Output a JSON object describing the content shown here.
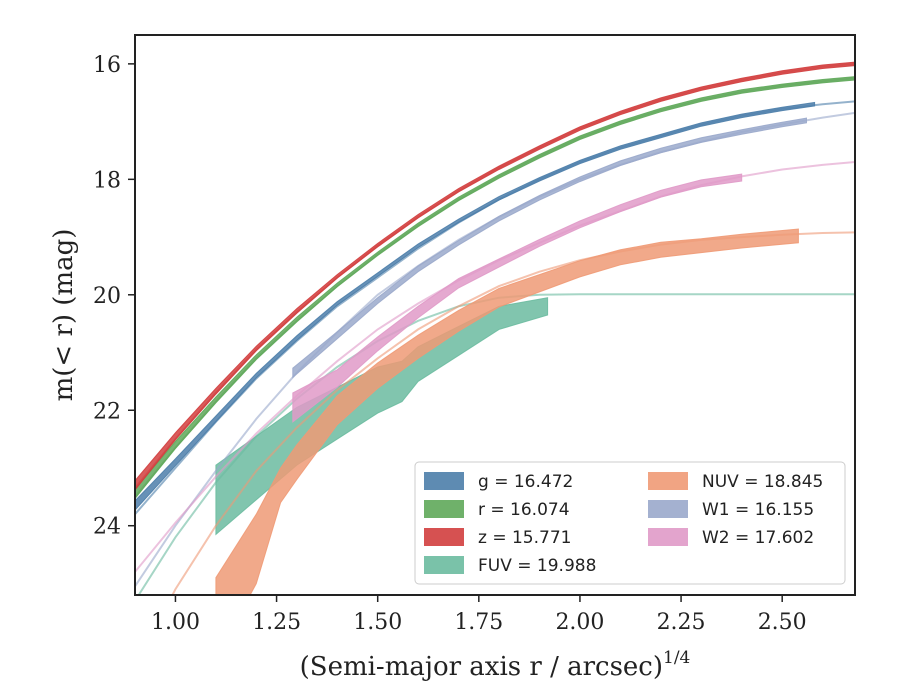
{
  "chart_data": {
    "type": "line",
    "title": "",
    "xlabel": "(Semi-major axis r / arcsec)",
    "xlabel_superscript": "1/4",
    "ylabel": "m(< r) (mag)",
    "xlim": [
      0.9,
      2.68
    ],
    "ylim": [
      25.2,
      15.5
    ],
    "y_inverted": true,
    "xticks": [
      "1.00",
      "1.25",
      "1.50",
      "1.75",
      "2.00",
      "2.25",
      "2.50"
    ],
    "yticks": [
      "16",
      "18",
      "20",
      "22",
      "24"
    ],
    "grid": false,
    "legend_position": "lower-right",
    "series": [
      {
        "name": "g = 16.472",
        "color": "#4c7eaa",
        "fit": {
          "x": [
            0.9,
            1.0,
            1.1,
            1.2,
            1.3,
            1.4,
            1.5,
            1.6,
            1.7,
            1.8,
            1.9,
            2.0,
            2.1,
            2.2,
            2.3,
            2.4,
            2.5,
            2.6,
            2.68
          ],
          "y": [
            23.8,
            23.0,
            22.2,
            21.45,
            20.8,
            20.2,
            19.7,
            19.2,
            18.75,
            18.35,
            18.0,
            17.7,
            17.45,
            17.25,
            17.05,
            16.9,
            16.78,
            16.7,
            16.65
          ]
        },
        "data": {
          "x": [
            0.9,
            1.0,
            1.1,
            1.2,
            1.3,
            1.4,
            1.5,
            1.6,
            1.7,
            1.8,
            1.9,
            2.0,
            2.1,
            2.2,
            2.3,
            2.4,
            2.5,
            2.58
          ],
          "y": [
            23.65,
            22.9,
            22.15,
            21.4,
            20.75,
            20.15,
            19.65,
            19.15,
            18.72,
            18.33,
            18.0,
            17.7,
            17.45,
            17.25,
            17.05,
            16.9,
            16.78,
            16.7
          ],
          "err": [
            0.08,
            0.06,
            0.05,
            0.04,
            0.04,
            0.03,
            0.03,
            0.03,
            0.03,
            0.03,
            0.03,
            0.03,
            0.03,
            0.03,
            0.03,
            0.03,
            0.03,
            0.03
          ]
        }
      },
      {
        "name": "r = 16.074",
        "color": "#5fa85a",
        "fit": {
          "x": [
            0.9,
            1.0,
            1.1,
            1.2,
            1.3,
            1.4,
            1.5,
            1.6,
            1.7,
            1.8,
            1.9,
            2.0,
            2.1,
            2.2,
            2.3,
            2.4,
            2.5,
            2.6,
            2.68
          ],
          "y": [
            23.5,
            22.65,
            21.85,
            21.1,
            20.45,
            19.85,
            19.3,
            18.8,
            18.35,
            17.95,
            17.6,
            17.28,
            17.02,
            16.8,
            16.62,
            16.48,
            16.38,
            16.3,
            16.25
          ]
        },
        "data": {
          "x": [
            0.9,
            1.0,
            1.1,
            1.2,
            1.3,
            1.4,
            1.5,
            1.6,
            1.7,
            1.8,
            1.9,
            2.0,
            2.1,
            2.2,
            2.3,
            2.4,
            2.5,
            2.6,
            2.68
          ],
          "y": [
            23.45,
            22.6,
            21.82,
            21.08,
            20.43,
            19.83,
            19.29,
            18.79,
            18.34,
            17.95,
            17.6,
            17.28,
            17.02,
            16.8,
            16.62,
            16.48,
            16.38,
            16.3,
            16.25
          ],
          "err": [
            0.08,
            0.06,
            0.05,
            0.04,
            0.04,
            0.03,
            0.03,
            0.03,
            0.03,
            0.03,
            0.03,
            0.03,
            0.03,
            0.03,
            0.03,
            0.03,
            0.03,
            0.03,
            0.03
          ]
        }
      },
      {
        "name": "z = 15.771",
        "color": "#d23e3e",
        "fit": {
          "x": [
            0.9,
            1.0,
            1.1,
            1.2,
            1.3,
            1.4,
            1.5,
            1.6,
            1.7,
            1.8,
            1.9,
            2.0,
            2.1,
            2.2,
            2.3,
            2.4,
            2.5,
            2.6,
            2.68
          ],
          "y": [
            23.35,
            22.5,
            21.7,
            20.95,
            20.3,
            19.7,
            19.15,
            18.65,
            18.2,
            17.8,
            17.45,
            17.12,
            16.85,
            16.62,
            16.43,
            16.28,
            16.15,
            16.05,
            16.0
          ]
        },
        "data": {
          "x": [
            0.9,
            1.0,
            1.1,
            1.2,
            1.3,
            1.4,
            1.5,
            1.6,
            1.7,
            1.8,
            1.9,
            2.0,
            2.1,
            2.2,
            2.3,
            2.4,
            2.5,
            2.6,
            2.68
          ],
          "y": [
            23.3,
            22.45,
            21.67,
            20.93,
            20.28,
            19.68,
            19.14,
            18.64,
            18.19,
            17.8,
            17.45,
            17.12,
            16.85,
            16.62,
            16.43,
            16.28,
            16.15,
            16.05,
            16.0
          ],
          "err": [
            0.08,
            0.06,
            0.05,
            0.04,
            0.04,
            0.03,
            0.03,
            0.03,
            0.03,
            0.03,
            0.03,
            0.03,
            0.03,
            0.03,
            0.03,
            0.03,
            0.03,
            0.03,
            0.03
          ]
        }
      },
      {
        "name": "FUV = 19.988",
        "color": "#6bbba0",
        "fit": {
          "x": [
            0.9,
            1.0,
            1.1,
            1.2,
            1.3,
            1.4,
            1.5,
            1.6,
            1.7,
            1.8,
            1.9,
            2.0,
            2.1,
            2.2,
            2.4,
            2.68
          ],
          "y": [
            25.3,
            24.2,
            23.25,
            22.45,
            21.8,
            21.25,
            20.8,
            20.45,
            20.2,
            20.05,
            20.0,
            19.99,
            19.99,
            19.99,
            19.99,
            19.99
          ]
        },
        "data": {
          "x": [
            1.1,
            1.2,
            1.3,
            1.4,
            1.5,
            1.56,
            1.6,
            1.7,
            1.8,
            1.92
          ],
          "y": [
            23.55,
            23.0,
            22.45,
            22.05,
            21.65,
            21.5,
            21.2,
            20.8,
            20.4,
            20.2
          ],
          "err": [
            0.6,
            0.55,
            0.5,
            0.45,
            0.4,
            0.35,
            0.3,
            0.25,
            0.2,
            0.15
          ]
        }
      },
      {
        "name": "NUV = 18.845",
        "color": "#ef9a76",
        "fit": {
          "x": [
            0.9,
            1.0,
            1.1,
            1.2,
            1.3,
            1.4,
            1.5,
            1.6,
            1.7,
            1.8,
            1.9,
            2.0,
            2.1,
            2.2,
            2.3,
            2.4,
            2.5,
            2.6,
            2.68
          ],
          "y": [
            26.5,
            25.1,
            24.0,
            23.05,
            22.3,
            21.65,
            21.1,
            20.6,
            20.2,
            19.85,
            19.6,
            19.4,
            19.25,
            19.13,
            19.05,
            19.0,
            18.96,
            18.93,
            18.92
          ]
        },
        "data": {
          "x": [
            1.1,
            1.2,
            1.26,
            1.3,
            1.4,
            1.5,
            1.6,
            1.7,
            1.8,
            1.9,
            2.0,
            2.1,
            2.2,
            2.3,
            2.4,
            2.54
          ],
          "y": [
            25.6,
            24.4,
            23.3,
            22.9,
            22.0,
            21.4,
            20.9,
            20.45,
            20.05,
            19.8,
            19.55,
            19.35,
            19.22,
            19.15,
            19.07,
            18.98
          ],
          "err": [
            0.7,
            0.6,
            0.3,
            0.3,
            0.25,
            0.22,
            0.2,
            0.18,
            0.16,
            0.15,
            0.14,
            0.13,
            0.13,
            0.12,
            0.12,
            0.12
          ]
        }
      },
      {
        "name": "W1 = 16.155",
        "color": "#9aa9cb",
        "fit": {
          "x": [
            0.9,
            1.0,
            1.1,
            1.2,
            1.3,
            1.4,
            1.5,
            1.6,
            1.7,
            1.8,
            1.9,
            2.0,
            2.1,
            2.2,
            2.3,
            2.4,
            2.5,
            2.6,
            2.68
          ],
          "y": [
            25.05,
            24.0,
            23.05,
            22.15,
            21.35,
            20.65,
            20.0,
            19.5,
            19.05,
            18.65,
            18.3,
            18.0,
            17.75,
            17.53,
            17.35,
            17.18,
            17.05,
            16.93,
            16.85
          ]
        },
        "data": {
          "x": [
            1.29,
            1.4,
            1.5,
            1.6,
            1.7,
            1.8,
            1.9,
            2.0,
            2.1,
            2.2,
            2.3,
            2.4,
            2.5,
            2.56
          ],
          "y": [
            21.35,
            20.7,
            20.1,
            19.55,
            19.1,
            18.68,
            18.32,
            18.0,
            17.72,
            17.5,
            17.32,
            17.18,
            17.05,
            16.98
          ],
          "err": [
            0.08,
            0.06,
            0.05,
            0.05,
            0.04,
            0.04,
            0.04,
            0.04,
            0.04,
            0.04,
            0.04,
            0.04,
            0.04,
            0.04
          ]
        }
      },
      {
        "name": "W2 = 17.602",
        "color": "#e09ac8",
        "fit": {
          "x": [
            0.9,
            1.0,
            1.1,
            1.2,
            1.3,
            1.4,
            1.5,
            1.6,
            1.7,
            1.8,
            1.9,
            2.0,
            2.1,
            2.2,
            2.3,
            2.4,
            2.5,
            2.6,
            2.68
          ],
          "y": [
            24.8,
            23.95,
            23.15,
            22.4,
            21.75,
            21.15,
            20.6,
            20.15,
            19.75,
            19.4,
            19.1,
            18.8,
            18.55,
            18.3,
            18.1,
            17.95,
            17.83,
            17.75,
            17.7
          ]
        },
        "data": {
          "x": [
            1.29,
            1.4,
            1.5,
            1.6,
            1.7,
            1.8,
            1.9,
            2.0,
            2.1,
            2.2,
            2.3,
            2.4
          ],
          "y": [
            21.95,
            21.45,
            20.85,
            20.3,
            19.8,
            19.45,
            19.1,
            18.78,
            18.5,
            18.25,
            18.07,
            17.97
          ],
          "err": [
            0.25,
            0.15,
            0.12,
            0.1,
            0.08,
            0.07,
            0.06,
            0.06,
            0.06,
            0.06,
            0.06,
            0.06
          ]
        }
      }
    ]
  }
}
